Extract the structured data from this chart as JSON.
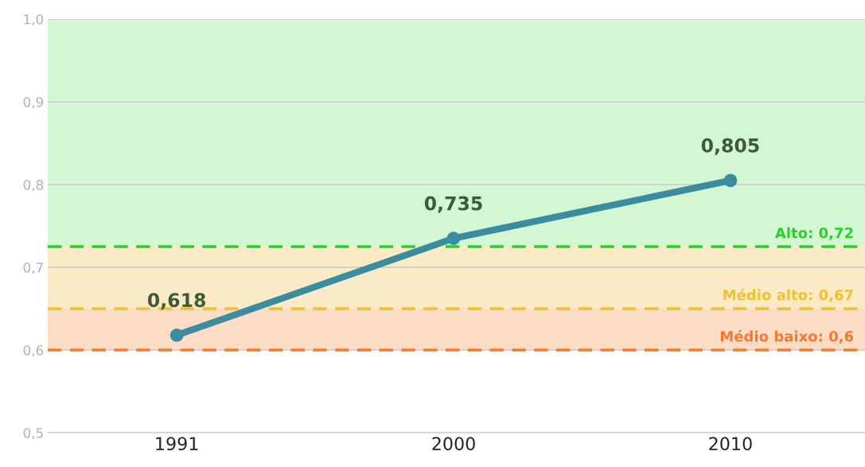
{
  "chart_data": {
    "type": "line",
    "categories": [
      "1991",
      "2000",
      "2010"
    ],
    "series": [
      {
        "color": "#3a8c9e",
        "values": [
          0.618,
          0.735,
          0.805
        ],
        "value_labels": [
          "0,618",
          "0,735",
          "0,805"
        ]
      }
    ],
    "marker": "circle",
    "line_style": "solid",
    "ylim": [
      0.5,
      1.0
    ],
    "yticks": [
      {
        "value": 0.5,
        "label": "0,5"
      },
      {
        "value": 0.6,
        "label": "0,6"
      },
      {
        "value": 0.7,
        "label": "0,7"
      },
      {
        "value": 0.8,
        "label": "0,8"
      },
      {
        "value": 0.9,
        "label": "0,9"
      },
      {
        "value": 1.0,
        "label": "1,0"
      }
    ],
    "grid": "y",
    "bands": [
      {
        "axis": "y",
        "from": 0.725,
        "to": 1.0,
        "color": "#d3f7d3"
      },
      {
        "axis": "y",
        "from": 0.65,
        "to": 0.725,
        "color": "#faeac6",
        "label": "Médio alto: 0,67"
      },
      {
        "axis": "y",
        "from": 0.6,
        "to": 0.65,
        "color": "#fddcc6"
      }
    ],
    "ref_lines": [
      {
        "axis": "y",
        "value": 0.725,
        "label": "Alto: 0,72",
        "color": "#2ecc2e",
        "line_style": "dashed"
      },
      {
        "axis": "y",
        "value": 0.65,
        "color": "#f0c030",
        "line_style": "dashed"
      },
      {
        "axis": "y",
        "value": 0.6,
        "label": "Médio baixo: 0,6",
        "color": "#f07a30",
        "line_style": "dashed"
      }
    ]
  }
}
